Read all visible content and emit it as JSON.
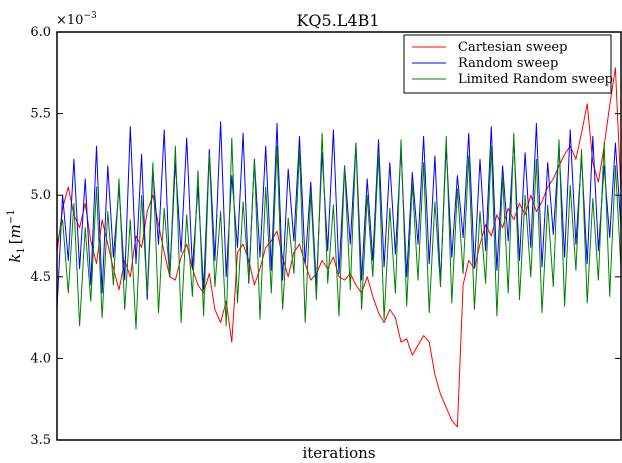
{
  "chart_data": {
    "type": "line",
    "title": "KQ5.L4B1",
    "xlabel": "iterations",
    "ylabel": "k₁ [m⁻¹]",
    "ylabel_parts": {
      "base": "k",
      "sub": "1",
      "bracket_open": "[",
      "unit": "m",
      "sup": "−1",
      "bracket_close": "]"
    },
    "y_multiplier": "×10⁻³",
    "y_multiplier_parts": {
      "prefix": "×10",
      "exp": "−3"
    },
    "ylim": [
      3.5,
      6.0
    ],
    "yticks": [
      3.5,
      4.0,
      4.5,
      5.0,
      5.5,
      6.0
    ],
    "ytick_labels": [
      "3.5",
      "4.0",
      "4.5",
      "5.0",
      "5.5",
      "6.0"
    ],
    "xlim": [
      0,
      400
    ],
    "xticks_shown": false,
    "grid": false,
    "legend_position": "top-right",
    "series": [
      {
        "name": "Cartesian sweep",
        "color": "#ff0000",
        "x": [
          0,
          4,
          8,
          12,
          16,
          20,
          24,
          28,
          32,
          36,
          40,
          44,
          48,
          52,
          56,
          60,
          64,
          68,
          72,
          76,
          80,
          84,
          88,
          92,
          96,
          100,
          104,
          108,
          112,
          116,
          120,
          124,
          128,
          132,
          136,
          140,
          144,
          148,
          152,
          156,
          160,
          164,
          168,
          172,
          176,
          180,
          184,
          188,
          192,
          196,
          200,
          204,
          208,
          212,
          216,
          220,
          224,
          228,
          232,
          236,
          240,
          244,
          248,
          252,
          256,
          260,
          264,
          268,
          272,
          276,
          280,
          284,
          288,
          292,
          296,
          300,
          304,
          308,
          312,
          316,
          320,
          324,
          328,
          332,
          336,
          340,
          344,
          348,
          352,
          356,
          360,
          364,
          368,
          372,
          376,
          380,
          384,
          388,
          392,
          396,
          400
        ],
        "y": [
          4.65,
          4.92,
          5.05,
          4.88,
          4.8,
          4.95,
          4.72,
          4.58,
          4.85,
          4.7,
          4.55,
          4.42,
          4.6,
          4.5,
          4.75,
          4.68,
          4.9,
          5.0,
          4.82,
          4.65,
          4.5,
          4.48,
          4.62,
          4.7,
          4.55,
          4.45,
          4.4,
          4.52,
          4.3,
          4.22,
          4.35,
          4.1,
          4.65,
          4.7,
          4.6,
          4.45,
          4.55,
          4.68,
          4.72,
          4.78,
          4.62,
          4.5,
          4.65,
          4.7,
          4.58,
          4.48,
          4.52,
          4.6,
          4.55,
          4.62,
          4.5,
          4.48,
          4.52,
          4.45,
          4.4,
          4.5,
          4.38,
          4.28,
          4.22,
          4.3,
          4.25,
          4.1,
          4.12,
          4.02,
          4.08,
          4.14,
          4.1,
          3.9,
          3.78,
          3.7,
          3.62,
          3.58,
          4.45,
          4.6,
          4.55,
          4.7,
          4.82,
          4.75,
          4.88,
          4.8,
          4.92,
          4.85,
          4.95,
          4.88,
          5.0,
          4.9,
          4.96,
          5.05,
          5.1,
          5.18,
          5.25,
          5.3,
          5.22,
          5.38,
          5.56,
          5.2,
          5.08,
          5.3,
          5.55,
          5.78,
          5.02
        ]
      },
      {
        "name": "Random sweep",
        "color": "#0000ff",
        "x": [
          0,
          4,
          8,
          12,
          16,
          20,
          24,
          28,
          32,
          36,
          40,
          44,
          48,
          52,
          56,
          60,
          64,
          68,
          72,
          76,
          80,
          84,
          88,
          92,
          96,
          100,
          104,
          108,
          112,
          116,
          120,
          124,
          128,
          132,
          136,
          140,
          144,
          148,
          152,
          156,
          160,
          164,
          168,
          172,
          176,
          180,
          184,
          188,
          192,
          196,
          200,
          204,
          208,
          212,
          216,
          220,
          224,
          228,
          232,
          236,
          240,
          244,
          248,
          252,
          256,
          260,
          264,
          268,
          272,
          276,
          280,
          284,
          288,
          292,
          296,
          300,
          304,
          308,
          312,
          316,
          320,
          324,
          328,
          332,
          336,
          340,
          344,
          348,
          352,
          356,
          360,
          364,
          368,
          372,
          376,
          380,
          384,
          388,
          392,
          396,
          400
        ],
        "y": [
          4.3,
          5.0,
          4.6,
          5.22,
          4.55,
          5.1,
          4.45,
          5.3,
          4.4,
          5.18,
          4.62,
          5.05,
          4.48,
          5.42,
          4.58,
          5.25,
          4.36,
          5.15,
          4.7,
          5.4,
          4.5,
          5.2,
          4.65,
          5.35,
          4.55,
          5.05,
          4.42,
          5.28,
          4.6,
          5.45,
          4.5,
          5.12,
          4.68,
          5.38,
          4.46,
          5.22,
          4.62,
          5.3,
          4.54,
          5.44,
          4.48,
          5.16,
          4.72,
          5.36,
          4.58,
          5.08,
          4.44,
          5.26,
          4.66,
          5.4,
          4.52,
          5.18,
          4.7,
          5.32,
          4.48,
          5.1,
          4.6,
          5.34,
          4.56,
          5.2,
          4.64,
          5.28,
          4.5,
          5.14,
          4.7,
          5.36,
          4.58,
          5.24,
          4.46,
          5.3,
          4.62,
          5.12,
          4.74,
          5.38,
          4.56,
          5.22,
          4.66,
          5.42,
          4.54,
          5.18,
          4.72,
          5.34,
          4.6,
          5.26,
          4.68,
          5.44,
          4.56,
          5.2,
          4.76,
          5.3,
          4.62,
          5.4,
          4.7,
          5.24,
          4.58,
          5.36,
          4.66,
          5.18,
          4.74,
          5.32,
          4.8
        ]
      },
      {
        "name": "Limited Random sweep",
        "color": "#008000",
        "x": [
          0,
          4,
          8,
          12,
          16,
          20,
          24,
          28,
          32,
          36,
          40,
          44,
          48,
          52,
          56,
          60,
          64,
          68,
          72,
          76,
          80,
          84,
          88,
          92,
          96,
          100,
          104,
          108,
          112,
          116,
          120,
          124,
          128,
          132,
          136,
          140,
          144,
          148,
          152,
          156,
          160,
          164,
          168,
          172,
          176,
          180,
          184,
          188,
          192,
          196,
          200,
          204,
          208,
          212,
          216,
          220,
          224,
          228,
          232,
          236,
          240,
          244,
          248,
          252,
          256,
          260,
          264,
          268,
          272,
          276,
          280,
          284,
          288,
          292,
          296,
          300,
          304,
          308,
          312,
          316,
          320,
          324,
          328,
          332,
          336,
          340,
          344,
          348,
          352,
          356,
          360,
          364,
          368,
          372,
          376,
          380,
          384,
          388,
          392,
          396,
          400
        ],
        "y": [
          4.7,
          4.85,
          4.4,
          4.95,
          4.2,
          4.8,
          4.35,
          5.05,
          4.25,
          4.9,
          4.45,
          5.1,
          4.3,
          4.85,
          4.18,
          5.0,
          4.4,
          5.2,
          4.28,
          4.92,
          4.5,
          5.3,
          4.22,
          4.88,
          4.38,
          5.15,
          4.26,
          5.25,
          4.44,
          4.9,
          4.2,
          5.35,
          4.34,
          4.96,
          4.48,
          5.22,
          4.24,
          5.05,
          4.4,
          5.3,
          4.3,
          4.86,
          4.52,
          5.28,
          4.22,
          5.02,
          4.36,
          5.38,
          4.46,
          4.94,
          4.26,
          5.18,
          4.42,
          5.32,
          4.3,
          5.0,
          4.5,
          5.26,
          4.24,
          4.92,
          4.4,
          5.34,
          4.32,
          5.08,
          4.48,
          5.2,
          4.28,
          4.96,
          4.44,
          5.36,
          4.34,
          5.04,
          4.52,
          5.24,
          4.3,
          4.9,
          4.46,
          5.3,
          4.26,
          5.12,
          4.4,
          5.38,
          4.36,
          5.0,
          4.5,
          5.22,
          4.28,
          4.94,
          4.44,
          5.34,
          4.32,
          5.06,
          4.54,
          5.28,
          4.34,
          4.98,
          4.48,
          5.32,
          4.38,
          5.18,
          4.55
        ]
      }
    ]
  }
}
